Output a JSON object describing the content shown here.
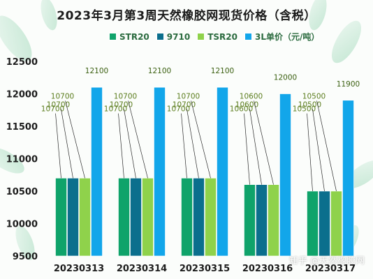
{
  "title": "2023年3月第3周天然橡胶网现货价格（含税）",
  "watermark": "知乎 @天然橡胶网",
  "colors": {
    "STR20": "#0fa36a",
    "9710": "#0b6f8d",
    "TSR20": "#8fd24b",
    "3L": "#12a6ea",
    "label": "#5b7d1d",
    "axis": "#1c1c1c"
  },
  "chart_data": {
    "type": "bar",
    "categories": [
      "20230313",
      "20230314",
      "20230315",
      "20230316",
      "20230317"
    ],
    "series": [
      {
        "name": "STR20",
        "values": [
          10700,
          10700,
          10700,
          10600,
          10500
        ]
      },
      {
        "name": "9710",
        "values": [
          10700,
          10700,
          10700,
          10600,
          10500
        ]
      },
      {
        "name": "TSR20",
        "values": [
          10700,
          10700,
          10700,
          10600,
          10500
        ]
      },
      {
        "name": "3L单价（元/吨）",
        "values": [
          12100,
          12100,
          12100,
          12000,
          11900
        ]
      }
    ],
    "ylim": [
      9500,
      12500
    ],
    "yticks": [
      9500,
      10000,
      10500,
      11000,
      11500,
      12000,
      12500
    ],
    "legend": "top"
  }
}
